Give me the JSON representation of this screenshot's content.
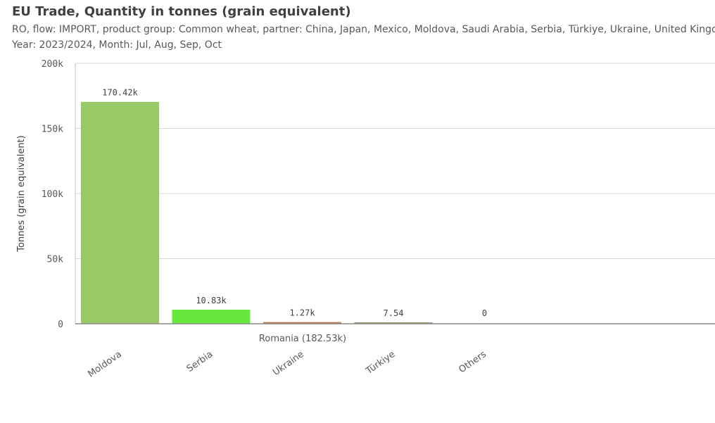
{
  "header": {
    "title": "EU Trade, Quantity in tonnes (grain equivalent)",
    "filters_line1": "RO, flow: IMPORT, product group: Common wheat, partner: China, Japan, Mexico, Moldova, Saudi Arabia, Serbia, Türkiye, Ukraine, United Kingdom",
    "filters_line2": "Year: 2023/2024, Month: Jul, Aug, Sep, Oct"
  },
  "chart_data": {
    "type": "bar",
    "title": "EU Trade, Quantity in tonnes (grain equivalent)",
    "xlabel": "",
    "ylabel": "Tonnes (grain equivalent)",
    "ylim": [
      0,
      200000
    ],
    "yticks": [
      0,
      50000,
      100000,
      150000,
      200000
    ],
    "ytick_labels": [
      "0",
      "50k",
      "100k",
      "150k",
      "200k"
    ],
    "grid": true,
    "group_label": "Romania (182.53k)",
    "categories": [
      "Moldova",
      "Serbia",
      "Ukraine",
      "Türkiye",
      "Others"
    ],
    "values": [
      170420,
      10830,
      1270,
      7.54,
      0
    ],
    "data_labels": [
      "170.42k",
      "10.83k",
      "1.27k",
      "7.54",
      "0"
    ],
    "colors": [
      "#99c966",
      "#66e83d",
      "#b5784d",
      "#8a9b6e",
      "#9e9e9e"
    ]
  }
}
